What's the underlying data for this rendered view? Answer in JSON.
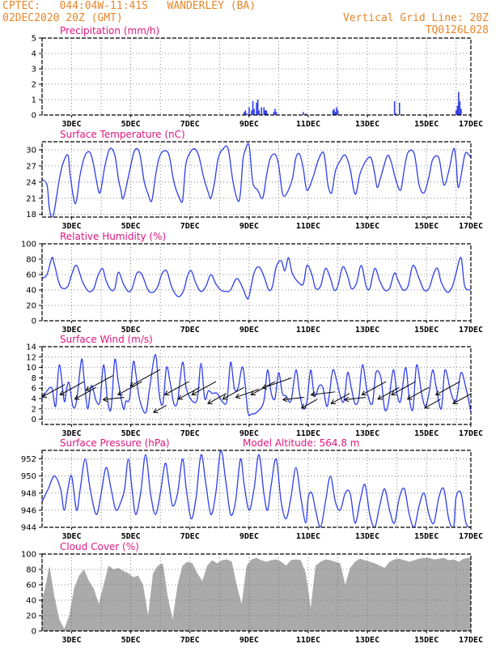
{
  "header": {
    "line1": "CPTEC:   044:04W-11:41S   WANDERLEY (BA)",
    "line2": "02DEC2020 20Z (GMT)",
    "grid_note": "Vertical Grid Line: 20Z",
    "code": "TQ0126L028"
  },
  "colors": {
    "series": "#2f3ee8",
    "cloud": "#aaaaaa",
    "title": "#e0167f",
    "header": "#e8862a"
  },
  "x_axis": {
    "start_hour": 0,
    "end_hour": 348,
    "labels": [
      "3DEC",
      "5DEC",
      "7DEC",
      "9DEC",
      "11DEC",
      "13DEC",
      "15DEC",
      "17DEC"
    ],
    "label_hours": [
      24,
      72,
      120,
      168,
      216,
      264,
      312,
      360
    ]
  },
  "chart_data": [
    {
      "id": "precip",
      "type": "bar",
      "title": "Precipitation (mm/h)",
      "ylim": [
        0,
        5
      ],
      "yticks": [
        0,
        1,
        2,
        3,
        4,
        5
      ],
      "x_hours": [
        164,
        165,
        166,
        168,
        170,
        171,
        172,
        174,
        175,
        176,
        178,
        180,
        181,
        182,
        183,
        188,
        189,
        190,
        212,
        214,
        236,
        237,
        238,
        239,
        240,
        286,
        287,
        290,
        336,
        337,
        338,
        339,
        340
      ],
      "values": [
        0.2,
        0.3,
        0.1,
        0.5,
        0.3,
        0.9,
        0.4,
        0.8,
        1.0,
        0.3,
        0.5,
        0.5,
        0.3,
        0.3,
        0.1,
        0.2,
        0.4,
        0.2,
        0.2,
        0.1,
        0.3,
        0.4,
        0.2,
        0.5,
        0.3,
        0.9,
        0.1,
        0.8,
        0.3,
        0.6,
        1.5,
        0.9,
        0.4
      ]
    },
    {
      "id": "temp",
      "type": "line",
      "title": "Surface Temperature (nC)",
      "ylim": [
        17.5,
        31.5
      ],
      "yticks": [
        18,
        21,
        24,
        27,
        30
      ],
      "x_hours": [
        0,
        4,
        6,
        9,
        14,
        17,
        21,
        23,
        27,
        31,
        35,
        39,
        42,
        44,
        47,
        51,
        55,
        59,
        62,
        64,
        66,
        71,
        75,
        79,
        83,
        86,
        89,
        92,
        95,
        99,
        103,
        107,
        111,
        114,
        116,
        118,
        123,
        127,
        131,
        135,
        137,
        140,
        143,
        147,
        151,
        155,
        159,
        161,
        163,
        165,
        168,
        171,
        175,
        179,
        182,
        185,
        189,
        192,
        195,
        198,
        203,
        206,
        209,
        212,
        215,
        220,
        224,
        228,
        230,
        232,
        235,
        238,
        242,
        246,
        250,
        253,
        255,
        258,
        263,
        267,
        270,
        272,
        275,
        280,
        283,
        287,
        291,
        294,
        297,
        302,
        306,
        310,
        314,
        317,
        322,
        326,
        330,
        334,
        336,
        338,
        343,
        346,
        348
      ],
      "values": [
        24.5,
        23.5,
        19,
        17.7,
        24.5,
        27.5,
        29,
        25,
        20,
        25.5,
        29,
        29.5,
        27,
        24.5,
        22,
        27,
        30.2,
        29,
        24.5,
        22.5,
        21,
        26,
        29.8,
        29.5,
        24,
        21.8,
        20.5,
        25,
        28.5,
        29.8,
        29,
        24,
        21.3,
        20.5,
        26,
        28.5,
        30.2,
        29,
        25,
        22,
        21,
        24,
        28.5,
        30.2,
        30.2,
        24,
        20.5,
        22,
        28,
        30,
        30.8,
        24,
        22.5,
        21,
        25,
        28.3,
        29.2,
        27.2,
        22,
        21.7,
        24.5,
        28.5,
        29.2,
        26.5,
        22.5,
        25,
        28,
        29.6,
        27.5,
        23.5,
        22,
        26,
        28,
        29,
        26.5,
        22.5,
        22,
        25.5,
        28,
        28.5,
        25.5,
        23,
        25,
        28.8,
        28,
        24.5,
        22.5,
        26.5,
        29.5,
        29.3,
        23.5,
        22,
        25,
        28.2,
        28.5,
        23.5,
        26,
        30.2,
        28,
        23,
        29,
        29.2,
        28.5
      ]
    },
    {
      "id": "rh",
      "type": "line",
      "title": "Relative Humidity (%)",
      "ylim": [
        0,
        100
      ],
      "yticks": [
        0,
        20,
        40,
        60,
        80,
        100
      ],
      "x_hours": [
        0,
        4,
        8,
        10,
        14,
        17,
        21,
        24,
        28,
        33,
        38,
        42,
        45,
        49,
        52,
        56,
        59,
        62,
        66,
        70,
        73,
        77,
        81,
        86,
        90,
        94,
        97,
        101,
        105,
        109,
        112,
        115,
        118,
        121,
        125,
        129,
        133,
        137,
        141,
        145,
        149,
        153,
        158,
        163,
        166,
        168,
        172,
        176,
        180,
        184,
        187,
        190,
        194,
        197,
        200,
        203,
        208,
        212,
        215,
        219,
        222,
        226,
        230,
        234,
        237,
        240,
        244,
        248,
        251,
        255,
        259,
        263,
        266,
        270,
        274,
        278,
        282,
        286,
        289,
        293,
        297,
        301,
        306,
        310,
        314,
        318,
        321,
        324,
        329,
        333,
        336,
        340,
        343,
        348
      ],
      "values": [
        55,
        60,
        82,
        73,
        48,
        42,
        45,
        60,
        72,
        50,
        38,
        42,
        57,
        68,
        52,
        40,
        42,
        63,
        48,
        38,
        42,
        62,
        60,
        40,
        37,
        45,
        60,
        65,
        45,
        33,
        32,
        40,
        58,
        65,
        48,
        38,
        45,
        60,
        48,
        40,
        38,
        40,
        55,
        42,
        30,
        32,
        62,
        70,
        58,
        40,
        45,
        70,
        78,
        65,
        82,
        62,
        50,
        48,
        72,
        60,
        42,
        45,
        68,
        55,
        40,
        45,
        70,
        58,
        42,
        48,
        72,
        45,
        42,
        68,
        52,
        40,
        42,
        62,
        52,
        40,
        45,
        72,
        55,
        40,
        42,
        62,
        68,
        50,
        37,
        45,
        62,
        82,
        45,
        40
      ]
    },
    {
      "id": "wind",
      "type": "line",
      "title": "Surface Wind (m/s)",
      "ylim": [
        -1,
        14
      ],
      "yticks": [
        0,
        2,
        4,
        6,
        8,
        10,
        12,
        14
      ],
      "x_hours": [
        0,
        4,
        8,
        11,
        14,
        18,
        20,
        22,
        25,
        28,
        32,
        34,
        37,
        40,
        44,
        47,
        50,
        53,
        56,
        59,
        62,
        66,
        68,
        71,
        74,
        76,
        79,
        84,
        87,
        92,
        95,
        98,
        101,
        104,
        107,
        110,
        114,
        117,
        122,
        126,
        129,
        132,
        135,
        138,
        142,
        146,
        150,
        153,
        156,
        159,
        163,
        167,
        170,
        175,
        180,
        183,
        186,
        189,
        192,
        195,
        198,
        202,
        206,
        209,
        212,
        215,
        218,
        221,
        225,
        228,
        231,
        233,
        236,
        239,
        242,
        245,
        248,
        251,
        254,
        257,
        260,
        264,
        268,
        271,
        275,
        278,
        281,
        285,
        288,
        291,
        295,
        298,
        301,
        304,
        308,
        311,
        314,
        317,
        320,
        324,
        327,
        332,
        336,
        340,
        344,
        348
      ],
      "values": [
        4,
        5.5,
        6,
        2.5,
        10.5,
        3.5,
        6,
        7,
        2.5,
        3.5,
        11.5,
        8,
        2,
        6.5,
        3.5,
        3.5,
        10.5,
        4,
        2,
        11.5,
        7,
        2,
        3.5,
        4,
        11,
        9,
        4,
        1.2,
        5.5,
        12.5,
        5,
        3,
        10,
        7,
        3,
        3.5,
        11,
        6,
        3.5,
        4,
        10.8,
        4,
        5.5,
        5,
        5,
        3.5,
        3.5,
        11,
        6,
        6,
        10,
        1.5,
        1,
        1.5,
        3.5,
        9.5,
        5,
        4,
        9,
        5,
        4.5,
        3.5,
        9.5,
        5,
        2,
        3.5,
        9.5,
        4.5,
        6.5,
        6,
        2.5,
        4.5,
        9.5,
        7.5,
        4.5,
        3.5,
        9,
        6,
        3,
        4,
        10.5,
        5,
        3,
        9,
        8,
        2,
        3,
        9.5,
        5,
        3.5,
        10,
        4,
        2,
        10.5,
        5,
        2.5,
        5,
        9.5,
        6,
        2,
        9.5,
        5,
        3.5,
        9,
        6,
        1.5
      ],
      "arrows": [
        {
          "h": 8,
          "speed": 5.5,
          "dir": "NE"
        },
        {
          "h": 23,
          "speed": 6,
          "dir": "NE"
        },
        {
          "h": 34,
          "speed": 5,
          "dir": "NE"
        },
        {
          "h": 45,
          "speed": 7,
          "dir": "NE"
        },
        {
          "h": 58,
          "speed": 4,
          "dir": "E"
        },
        {
          "h": 70,
          "speed": 6,
          "dir": "NE"
        },
        {
          "h": 82,
          "speed": 8,
          "dir": "NE"
        },
        {
          "h": 95,
          "speed": 2,
          "dir": "NE"
        },
        {
          "h": 108,
          "speed": 6,
          "dir": "NE"
        },
        {
          "h": 118,
          "speed": 5,
          "dir": "NE"
        },
        {
          "h": 130,
          "speed": 6,
          "dir": "NE"
        },
        {
          "h": 141,
          "speed": 4,
          "dir": "NE"
        },
        {
          "h": 154,
          "speed": 5,
          "dir": "NE"
        },
        {
          "h": 166,
          "speed": 5,
          "dir": "ENE"
        },
        {
          "h": 178,
          "speed": 6,
          "dir": "NE"
        },
        {
          "h": 190,
          "speed": 7,
          "dir": "ENE"
        },
        {
          "h": 204,
          "speed": 4,
          "dir": "E"
        },
        {
          "h": 216,
          "speed": 3,
          "dir": "NE"
        },
        {
          "h": 228,
          "speed": 5,
          "dir": "E"
        },
        {
          "h": 241,
          "speed": 4,
          "dir": "NE"
        },
        {
          "h": 254,
          "speed": 4,
          "dir": "E"
        },
        {
          "h": 268,
          "speed": 6,
          "dir": "NE"
        },
        {
          "h": 280,
          "speed": 5,
          "dir": "NE"
        },
        {
          "h": 292,
          "speed": 6,
          "dir": "NE"
        },
        {
          "h": 304,
          "speed": 5,
          "dir": "NE"
        },
        {
          "h": 316,
          "speed": 3,
          "dir": "NE"
        },
        {
          "h": 328,
          "speed": 6,
          "dir": "NE"
        },
        {
          "h": 340,
          "speed": 4,
          "dir": "NE"
        }
      ]
    },
    {
      "id": "pressure",
      "type": "line",
      "title": "Surface Pressure (hPa)",
      "extra_label": "Model Altitude: 564.8 m",
      "ylim": [
        944,
        953
      ],
      "yticks": [
        944,
        946,
        948,
        950,
        952
      ],
      "x_hours": [
        0,
        5,
        10,
        15,
        18,
        21,
        24,
        28,
        31,
        35,
        39,
        44,
        48,
        52,
        56,
        60,
        64,
        67,
        70,
        73,
        76,
        80,
        84,
        88,
        92,
        96,
        100,
        103,
        106,
        110,
        114,
        117,
        121,
        125,
        129,
        133,
        137,
        141,
        145,
        149,
        153,
        157,
        161,
        164,
        168,
        172,
        176,
        180,
        183,
        186,
        190,
        194,
        198,
        202,
        206,
        210,
        214,
        216,
        219,
        222,
        226,
        230,
        234,
        238,
        242,
        246,
        250,
        254,
        258,
        262,
        266,
        270,
        274,
        278,
        282,
        286,
        290,
        294,
        298,
        302,
        306,
        310,
        314,
        318,
        322,
        326,
        330,
        334,
        336,
        340,
        344,
        348
      ],
      "values": [
        947,
        948.5,
        950,
        948.5,
        946,
        948.5,
        950,
        946,
        948.5,
        952,
        948.5,
        945.5,
        948,
        951,
        948.5,
        946,
        947,
        948.5,
        952,
        948.5,
        945.5,
        948,
        952.5,
        948,
        945.5,
        948,
        951.5,
        949,
        946.5,
        948,
        952,
        948.5,
        945,
        947.5,
        952.5,
        949,
        945.5,
        948,
        953,
        949.5,
        945.5,
        947,
        952,
        949,
        946,
        948.5,
        952.5,
        948,
        946,
        949,
        952,
        947,
        945,
        947.5,
        951,
        947.5,
        944.5,
        947.5,
        948,
        946,
        944,
        947,
        950,
        947,
        946,
        948,
        948,
        944.5,
        947,
        949,
        945.5,
        944,
        946.5,
        948.5,
        946,
        944.5,
        947.5,
        948.5,
        945.5,
        944,
        946.5,
        948,
        945.5,
        944.5,
        947.5,
        948.5,
        945,
        944,
        947.5,
        948,
        944.5,
        944
      ]
    },
    {
      "id": "cloud",
      "type": "area",
      "title": "Cloud Cover (%)",
      "ylim": [
        0,
        100
      ],
      "yticks": [
        0,
        20,
        40,
        60,
        80,
        100
      ],
      "x_hours": [
        0,
        3,
        6,
        10,
        14,
        18,
        22,
        26,
        30,
        34,
        38,
        42,
        46,
        50,
        54,
        58,
        62,
        66,
        70,
        74,
        78,
        82,
        86,
        90,
        94,
        98,
        102,
        106,
        110,
        114,
        118,
        122,
        126,
        130,
        134,
        138,
        142,
        146,
        150,
        154,
        158,
        162,
        166,
        170,
        174,
        178,
        182,
        186,
        190,
        194,
        198,
        202,
        206,
        210,
        214,
        218,
        222,
        226,
        230,
        234,
        238,
        242,
        246,
        250,
        254,
        258,
        262,
        266,
        270,
        274,
        278,
        282,
        286,
        290,
        294,
        298,
        302,
        306,
        310,
        314,
        318,
        322,
        326,
        330,
        334,
        338,
        342,
        346,
        348
      ],
      "values": [
        40,
        60,
        85,
        45,
        15,
        3,
        20,
        55,
        72,
        80,
        65,
        55,
        35,
        60,
        85,
        80,
        82,
        78,
        75,
        70,
        72,
        60,
        20,
        75,
        85,
        88,
        45,
        15,
        60,
        85,
        90,
        88,
        75,
        65,
        85,
        92,
        88,
        92,
        93,
        90,
        60,
        35,
        85,
        93,
        95,
        92,
        90,
        92,
        93,
        90,
        85,
        92,
        93,
        92,
        75,
        30,
        85,
        90,
        93,
        92,
        90,
        88,
        60,
        82,
        90,
        94,
        92,
        90,
        88,
        85,
        82,
        90,
        93,
        94,
        92,
        90,
        92,
        94,
        95,
        95,
        93,
        94,
        95,
        92,
        93,
        90,
        94,
        95,
        95
      ]
    }
  ]
}
